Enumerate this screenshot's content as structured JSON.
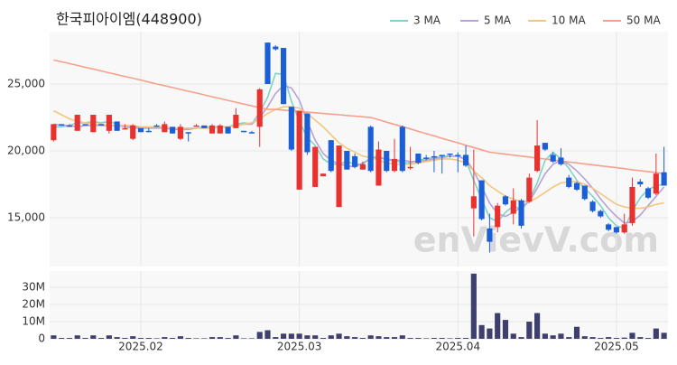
{
  "chart_data": {
    "type": "candlestick",
    "title": "한국피아이엠(448900)",
    "watermark": "enVievV.com",
    "categories": [
      null,
      null,
      null,
      null,
      null,
      null,
      null,
      null,
      null,
      null,
      null,
      "2025.02",
      null,
      null,
      null,
      null,
      null,
      null,
      null,
      null,
      null,
      null,
      null,
      null,
      null,
      null,
      null,
      null,
      null,
      null,
      null,
      "2025.03",
      null,
      null,
      null,
      null,
      null,
      null,
      null,
      null,
      null,
      null,
      null,
      null,
      null,
      null,
      null,
      null,
      null,
      null,
      null,
      "2025.04",
      null,
      null,
      null,
      null,
      null,
      null,
      null,
      null,
      null,
      null,
      null,
      null,
      null,
      null,
      null,
      null,
      null,
      null,
      null,
      "2025.05",
      null,
      null,
      null,
      null,
      null,
      null
    ],
    "open": [
      20800,
      22000,
      21900,
      21500,
      22000,
      21400,
      22000,
      21500,
      22200,
      21600,
      20900,
      21700,
      21500,
      21900,
      21400,
      21800,
      20900,
      21400,
      21800,
      21900,
      21300,
      21300,
      21800,
      21700,
      21500,
      21400,
      21800,
      28100,
      27800,
      27700,
      23300,
      17100,
      22800,
      17300,
      18100,
      20800,
      15800,
      20000,
      19600,
      18600,
      21800,
      17400,
      20000,
      18500,
      21800,
      18800,
      19800,
      19500,
      19600,
      19700,
      19800,
      19700,
      19700,
      15700,
      17800,
      14200,
      14300,
      16600,
      15300,
      16300,
      16200,
      18500,
      20600,
      19700,
      19500,
      18000,
      17600,
      17400,
      16200,
      15500,
      14500,
      14300,
      13900,
      14600,
      17700,
      17200,
      16800,
      18400
    ],
    "high": [
      22000,
      22000,
      22000,
      22700,
      22000,
      22700,
      22000,
      22700,
      22200,
      22000,
      22000,
      21700,
      21700,
      22000,
      22200,
      21800,
      22000,
      21400,
      22000,
      21900,
      22000,
      22000,
      21800,
      23200,
      21500,
      21500,
      24700,
      28100,
      27900,
      27700,
      23300,
      23000,
      22800,
      20300,
      18300,
      20800,
      20400,
      20000,
      19800,
      19200,
      21900,
      20700,
      20000,
      20900,
      21900,
      20300,
      19800,
      19700,
      20000,
      19700,
      19800,
      19900,
      20400,
      20100,
      17800,
      15300,
      16100,
      16700,
      17200,
      16400,
      18300,
      22300,
      20600,
      19900,
      20200,
      18200,
      17700,
      17400,
      16300,
      15600,
      14600,
      14300,
      15300,
      18000,
      17900,
      17300,
      19800,
      20300
    ],
    "low": [
      20700,
      21900,
      21800,
      21500,
      21900,
      21400,
      21900,
      21300,
      21500,
      21600,
      20800,
      21400,
      21400,
      21800,
      21400,
      21300,
      20800,
      20700,
      21800,
      21700,
      21300,
      21300,
      21300,
      21700,
      21400,
      21300,
      20300,
      25000,
      27500,
      23500,
      20000,
      17100,
      19700,
      17300,
      18100,
      18400,
      15800,
      18600,
      18700,
      18600,
      18400,
      17400,
      18400,
      18400,
      18400,
      18600,
      19000,
      19300,
      18400,
      18300,
      19500,
      18400,
      18800,
      13600,
      14800,
      12400,
      13900,
      15900,
      14500,
      14200,
      16100,
      18400,
      20000,
      19100,
      18900,
      17200,
      17000,
      16300,
      15400,
      15000,
      14000,
      13800,
      13800,
      14400,
      17300,
      16400,
      16700,
      17400
    ],
    "close": [
      22000,
      21900,
      21800,
      22700,
      21900,
      22700,
      21900,
      22700,
      21500,
      21700,
      21900,
      21400,
      21400,
      21800,
      22000,
      21300,
      21800,
      21300,
      21900,
      21700,
      21900,
      21900,
      21300,
      22700,
      21400,
      21300,
      24600,
      25000,
      27600,
      23500,
      20100,
      23000,
      19900,
      20300,
      18300,
      18500,
      20400,
      18600,
      18800,
      19000,
      18500,
      20100,
      18500,
      19400,
      18500,
      18800,
      19100,
      19400,
      19500,
      19600,
      19700,
      19600,
      18900,
      16600,
      14900,
      13200,
      15900,
      16000,
      16300,
      14400,
      18000,
      20400,
      20100,
      19200,
      19000,
      17300,
      17100,
      16400,
      15500,
      15100,
      14100,
      13900,
      14500,
      17300,
      17500,
      16500,
      18300,
      17400
    ],
    "volume": [
      2000000,
      500000,
      500000,
      2000000,
      500000,
      2000000,
      500000,
      2000000,
      1000000,
      500000,
      1500000,
      500000,
      500000,
      300000,
      1000000,
      500000,
      1500000,
      500000,
      300000,
      300000,
      1000000,
      1000000,
      500000,
      2000000,
      300000,
      300000,
      4000000,
      5000000,
      1000000,
      3000000,
      3000000,
      3000000,
      2000000,
      2000000,
      500000,
      2000000,
      3000000,
      1500000,
      1000000,
      500000,
      2000000,
      1500000,
      1000000,
      1000000,
      2000000,
      500000,
      500000,
      300000,
      500000,
      500000,
      300000,
      500000,
      500000,
      38000000,
      8000000,
      6000000,
      15000000,
      11000000,
      3000000,
      1000000,
      10000000,
      15000000,
      3000000,
      2000000,
      3000000,
      1000000,
      7000000,
      1500000,
      1000000,
      500000,
      1000000,
      500000,
      700000,
      3500000,
      1000000,
      500000,
      6000000,
      3500000
    ],
    "up_color": "#e8322f",
    "down_color": "#1a5fd8",
    "volume_color": "#3f3f6e",
    "series": [
      {
        "name": "3 MA",
        "color": "#7fd4c6",
        "values": [
          21800,
          21800,
          21900,
          22100,
          22100,
          22200,
          22100,
          22200,
          22000,
          21800,
          21700,
          21700,
          21700,
          21800,
          21700,
          21700,
          21600,
          21700,
          21700,
          21800,
          21800,
          21800,
          21800,
          22000,
          22100,
          22000,
          22900,
          24000,
          25800,
          25700,
          23700,
          22200,
          21000,
          20400,
          19400,
          19000,
          19000,
          19200,
          19000,
          19000,
          19500,
          19600,
          19300,
          19300,
          19100,
          19100,
          19300,
          19400,
          19500,
          19600,
          19600,
          19600,
          19300,
          17800,
          16400,
          15000,
          14700,
          15400,
          15900,
          15600,
          16300,
          17600,
          19300,
          19900,
          19400,
          18700,
          17800,
          17200,
          16600,
          15900,
          15000,
          14400,
          14200,
          15500,
          16500,
          17100,
          17400,
          17500
        ]
      },
      {
        "name": "5 MA",
        "color": "#b7a2d9",
        "values": [
          22000,
          21900,
          21900,
          21800,
          21900,
          21900,
          21900,
          21900,
          21900,
          21800,
          21800,
          21700,
          21700,
          21700,
          21700,
          21600,
          21600,
          21600,
          21700,
          21700,
          21700,
          21800,
          21800,
          21900,
          22000,
          22000,
          22500,
          23300,
          24300,
          24900,
          24700,
          23800,
          22200,
          20800,
          19800,
          19300,
          19000,
          18900,
          18800,
          19100,
          19400,
          19500,
          19400,
          19300,
          19300,
          19200,
          19200,
          19300,
          19400,
          19500,
          19600,
          19600,
          19400,
          18500,
          17300,
          16100,
          15300,
          15100,
          15400,
          15800,
          16200,
          17200,
          18300,
          19000,
          19300,
          19000,
          18500,
          17900,
          17200,
          16400,
          15700,
          15100,
          14600,
          14700,
          15200,
          15900,
          16600,
          17300
        ]
      },
      {
        "name": "10 MA",
        "color": "#f3c680",
        "values": [
          23000,
          22700,
          22400,
          22200,
          22100,
          22000,
          22000,
          21900,
          21900,
          21900,
          21900,
          21800,
          21800,
          21800,
          21800,
          21700,
          21700,
          21700,
          21700,
          21700,
          21700,
          21800,
          21800,
          21900,
          22000,
          22100,
          22400,
          22800,
          23100,
          23300,
          23300,
          23200,
          22800,
          22300,
          21800,
          21200,
          20600,
          20200,
          19900,
          19600,
          19500,
          19300,
          19100,
          19000,
          19000,
          19000,
          19100,
          19200,
          19300,
          19400,
          19400,
          19300,
          19100,
          18500,
          18000,
          17400,
          17000,
          16600,
          16400,
          16200,
          16200,
          16500,
          16900,
          17300,
          17600,
          17700,
          17700,
          17500,
          17200,
          16800,
          16400,
          16000,
          15800,
          15700,
          15700,
          15800,
          16000,
          16100
        ]
      },
      {
        "name": "50 MA",
        "color": "#f5a18c",
        "values": [
          26800,
          26660,
          26530,
          26390,
          26250,
          26120,
          25980,
          25840,
          25700,
          25570,
          25430,
          25300,
          25150,
          25000,
          24880,
          24740,
          24600,
          24460,
          24330,
          24190,
          24050,
          23920,
          23780,
          23640,
          23500,
          23370,
          23240,
          23100,
          23100,
          23050,
          23000,
          22950,
          22900,
          22850,
          22800,
          22750,
          22700,
          22650,
          22600,
          22550,
          22500,
          22330,
          22150,
          21980,
          21810,
          21640,
          21460,
          21290,
          21120,
          20940,
          20770,
          20600,
          20420,
          20250,
          20080,
          19900,
          19830,
          19750,
          19680,
          19610,
          19540,
          19460,
          19390,
          19320,
          19250,
          19170,
          19100,
          19030,
          18960,
          18880,
          18810,
          18740,
          18670,
          18590,
          18520,
          18450,
          18380,
          18300
        ]
      }
    ],
    "ylim": [
      11350,
      28920
    ],
    "yticks": [
      {
        "value": 15000,
        "label": "15,000"
      },
      {
        "value": 20000,
        "label": "20,000"
      },
      {
        "value": 25000,
        "label": "25,000"
      }
    ],
    "volume_ylim": [
      0,
      39500000
    ],
    "volume_yticks": [
      0,
      {
        "value": 10000000,
        "label": "10M"
      },
      {
        "value": 20000000,
        "label": "20M"
      },
      {
        "value": 30000000,
        "label": "30M"
      }
    ],
    "grid": true,
    "legend": "top-right"
  }
}
